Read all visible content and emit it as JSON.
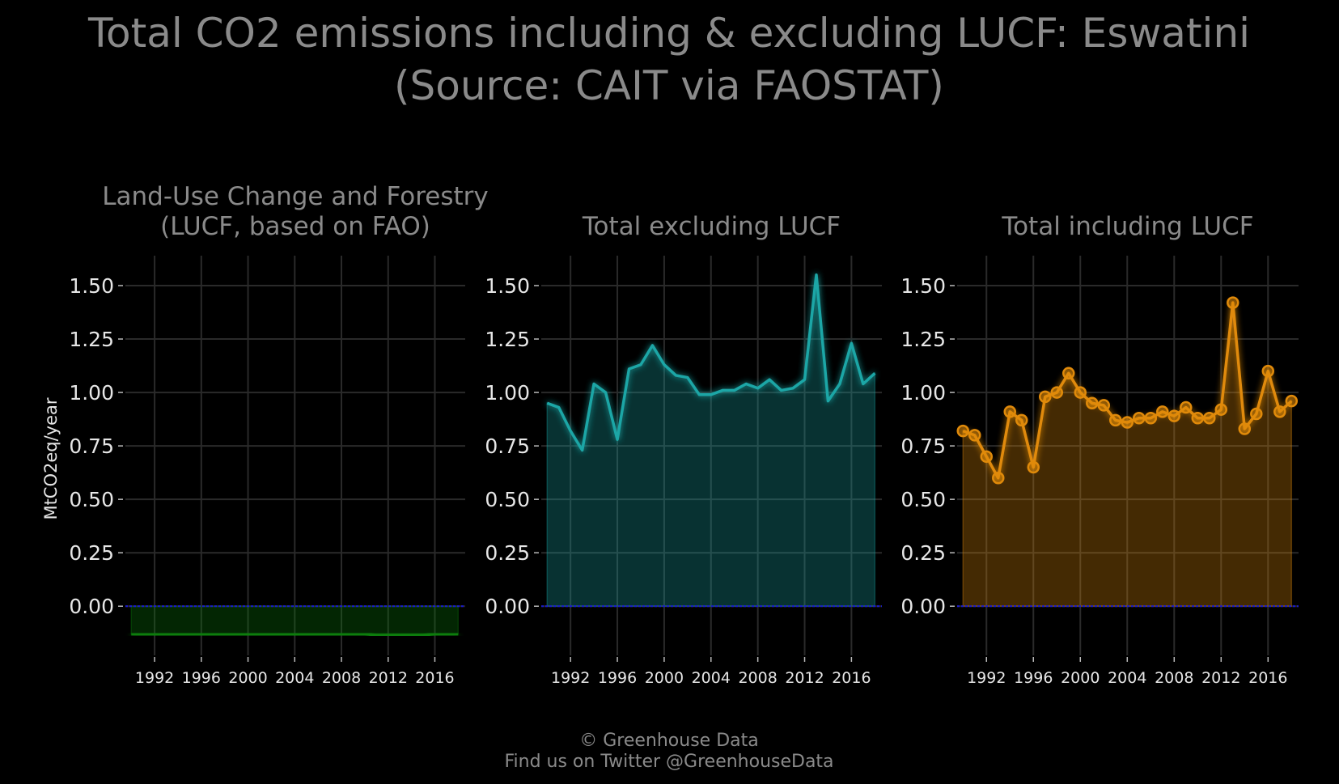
{
  "title_line1": "Total CO2 emissions including & excluding LUCF: Eswatini",
  "title_line2": "(Source: CAIT via FAOSTAT)",
  "ylabel": "MtCO2eq/year",
  "footer_line1": "© Greenhouse Data",
  "footer_line2": "Find us on Twitter @GreenhouseData",
  "colors": {
    "background": "#000000",
    "grid": "#2a2a2a",
    "zero_line": "#1a1ad6",
    "lucf": "#0a7d0a",
    "excl": "#1aa6a6",
    "incl": "#e08a0a"
  },
  "chart_data": [
    {
      "type": "area",
      "panel": "lucf",
      "title_lines": [
        "Land-Use Change and Forestry",
        "(LUCF, based on FAO)"
      ],
      "x": [
        1990,
        1991,
        1992,
        1993,
        1994,
        1995,
        1996,
        1997,
        1998,
        1999,
        2000,
        2001,
        2002,
        2003,
        2004,
        2005,
        2006,
        2007,
        2008,
        2009,
        2010,
        2011,
        2012,
        2013,
        2014,
        2015,
        2016,
        2017,
        2018
      ],
      "values": [
        -0.13,
        -0.13,
        -0.13,
        -0.13,
        -0.13,
        -0.13,
        -0.13,
        -0.13,
        -0.13,
        -0.13,
        -0.13,
        -0.13,
        -0.13,
        -0.13,
        -0.13,
        -0.13,
        -0.13,
        -0.13,
        -0.13,
        -0.13,
        -0.13,
        -0.135,
        -0.135,
        -0.135,
        -0.135,
        -0.135,
        -0.13,
        -0.13,
        -0.13
      ],
      "ylim": [
        -0.23,
        1.64
      ],
      "yticks": [
        "0.00",
        "0.25",
        "0.50",
        "0.75",
        "1.00",
        "1.25",
        "1.50"
      ],
      "xticks": [
        1992,
        1996,
        2000,
        2004,
        2008,
        2012,
        2016
      ],
      "markers": false
    },
    {
      "type": "area",
      "panel": "excl",
      "title_lines": [
        "Total excluding LUCF"
      ],
      "x": [
        1990,
        1991,
        1992,
        1993,
        1994,
        1995,
        1996,
        1997,
        1998,
        1999,
        2000,
        2001,
        2002,
        2003,
        2004,
        2005,
        2006,
        2007,
        2008,
        2009,
        2010,
        2011,
        2012,
        2013,
        2014,
        2015,
        2016,
        2017,
        2018
      ],
      "values": [
        0.95,
        0.93,
        0.82,
        0.73,
        1.04,
        1.0,
        0.78,
        1.11,
        1.13,
        1.22,
        1.13,
        1.08,
        1.07,
        0.99,
        0.99,
        1.01,
        1.01,
        1.04,
        1.02,
        1.06,
        1.01,
        1.02,
        1.06,
        1.55,
        0.96,
        1.04,
        1.23,
        1.04,
        1.09
      ],
      "ylim": [
        -0.23,
        1.64
      ],
      "yticks": [
        "0.00",
        "0.25",
        "0.50",
        "0.75",
        "1.00",
        "1.25",
        "1.50"
      ],
      "xticks": [
        1992,
        1996,
        2000,
        2004,
        2008,
        2012,
        2016
      ],
      "markers": false
    },
    {
      "type": "area",
      "panel": "incl",
      "title_lines": [
        "Total including LUCF"
      ],
      "x": [
        1990,
        1991,
        1992,
        1993,
        1994,
        1995,
        1996,
        1997,
        1998,
        1999,
        2000,
        2001,
        2002,
        2003,
        2004,
        2005,
        2006,
        2007,
        2008,
        2009,
        2010,
        2011,
        2012,
        2013,
        2014,
        2015,
        2016,
        2017,
        2018
      ],
      "values": [
        0.82,
        0.8,
        0.7,
        0.6,
        0.91,
        0.87,
        0.65,
        0.98,
        1.0,
        1.09,
        1.0,
        0.95,
        0.94,
        0.87,
        0.86,
        0.88,
        0.88,
        0.91,
        0.89,
        0.93,
        0.88,
        0.88,
        0.92,
        1.42,
        0.83,
        0.9,
        1.1,
        0.91,
        0.96
      ],
      "ylim": [
        -0.23,
        1.64
      ],
      "yticks": [
        "0.00",
        "0.25",
        "0.50",
        "0.75",
        "1.00",
        "1.25",
        "1.50"
      ],
      "xticks": [
        1992,
        1996,
        2000,
        2004,
        2008,
        2012,
        2016
      ],
      "markers": true
    }
  ]
}
